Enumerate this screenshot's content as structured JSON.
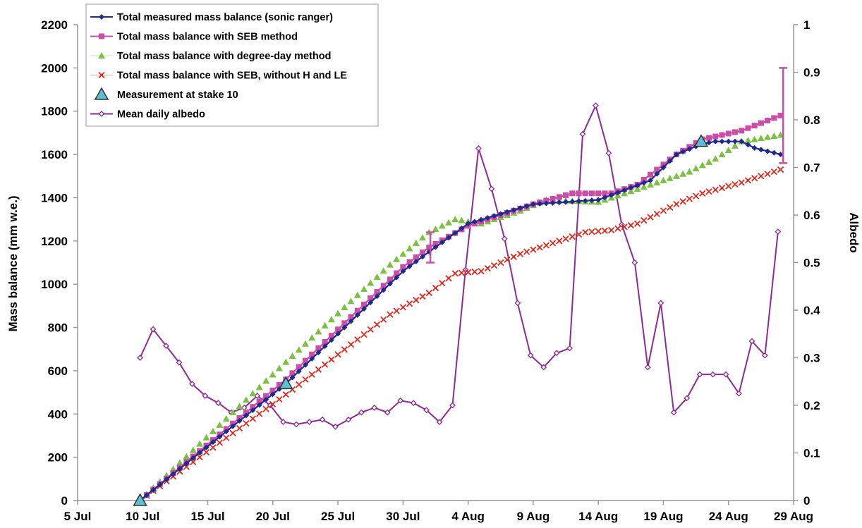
{
  "chart_data": {
    "type": "line",
    "title": "",
    "ylabel": "Mass balance (mm w.e.)",
    "y2label": "Albedo",
    "xlabel": "",
    "xlim": [
      0,
      55
    ],
    "ylim": [
      0,
      2200
    ],
    "y2lim": [
      0,
      1
    ],
    "x_ticks": [
      {
        "x": 0,
        "label": "5 Jul"
      },
      {
        "x": 5,
        "label": "10 Jul"
      },
      {
        "x": 10,
        "label": "15 Jul"
      },
      {
        "x": 15,
        "label": "20 Jul"
      },
      {
        "x": 20,
        "label": "25 Jul"
      },
      {
        "x": 25,
        "label": "30 Jul"
      },
      {
        "x": 30,
        "label": "4 Aug"
      },
      {
        "x": 35,
        "label": "9 Aug"
      },
      {
        "x": 40,
        "label": "14 Aug"
      },
      {
        "x": 45,
        "label": "19 Aug"
      },
      {
        "x": 50,
        "label": "24 Aug"
      },
      {
        "x": 55,
        "label": "29 Aug"
      }
    ],
    "y_ticks": [
      0,
      200,
      400,
      600,
      800,
      1000,
      1200,
      1400,
      1600,
      1800,
      2000,
      2200
    ],
    "y2_ticks": [
      0,
      0.1,
      0.2,
      0.3,
      0.4,
      0.5,
      0.6,
      0.7,
      0.8,
      0.9,
      1
    ],
    "grid": false,
    "legend_position": "top-left",
    "series": [
      {
        "name": "Total measured mass balance (sonic ranger)",
        "axis": "left",
        "color": "#1f2a8c",
        "marker": "diamond",
        "mode": "line",
        "points": [
          [
            4.8,
            0
          ],
          [
            16,
            540
          ],
          [
            25,
            1060
          ],
          [
            27,
            1150
          ],
          [
            30,
            1280
          ],
          [
            35,
            1370
          ],
          [
            40,
            1390
          ],
          [
            44,
            1480
          ],
          [
            46,
            1600
          ],
          [
            48,
            1650
          ],
          [
            49,
            1660
          ],
          [
            51,
            1660
          ],
          [
            52,
            1630
          ],
          [
            54,
            1600
          ]
        ]
      },
      {
        "name": "Total mass balance with SEB method",
        "axis": "left",
        "color": "#cc4da8",
        "marker": "square",
        "mode": "line",
        "points": [
          [
            4.8,
            0
          ],
          [
            16,
            560
          ],
          [
            25,
            1080
          ],
          [
            27,
            1170
          ],
          [
            30,
            1270
          ],
          [
            35,
            1370
          ],
          [
            38,
            1420
          ],
          [
            41,
            1420
          ],
          [
            43,
            1460
          ],
          [
            46,
            1600
          ],
          [
            48,
            1670
          ],
          [
            51,
            1710
          ],
          [
            54,
            1780
          ]
        ]
      },
      {
        "name": "Total mass balance with degree-day method",
        "axis": "left",
        "color": "#7ac142",
        "marker": "triangle",
        "mode": "markers",
        "points": [
          [
            4.8,
            0
          ],
          [
            16,
            640
          ],
          [
            24,
            1090
          ],
          [
            27,
            1240
          ],
          [
            29,
            1300
          ],
          [
            31,
            1280
          ],
          [
            34,
            1340
          ],
          [
            36,
            1390
          ],
          [
            40,
            1380
          ],
          [
            44,
            1460
          ],
          [
            47,
            1520
          ],
          [
            49,
            1580
          ],
          [
            51,
            1660
          ],
          [
            54,
            1690
          ]
        ]
      },
      {
        "name": "Total mass balance with SEB, without H and LE",
        "axis": "left",
        "color": "#e0291c",
        "marker": "cross",
        "mode": "markers",
        "points": [
          [
            4.8,
            0
          ],
          [
            16,
            490
          ],
          [
            24,
            860
          ],
          [
            27,
            960
          ],
          [
            29,
            1050
          ],
          [
            31,
            1060
          ],
          [
            34,
            1140
          ],
          [
            37,
            1200
          ],
          [
            39,
            1240
          ],
          [
            41,
            1250
          ],
          [
            43,
            1280
          ],
          [
            46,
            1370
          ],
          [
            48,
            1420
          ],
          [
            51,
            1470
          ],
          [
            54,
            1530
          ]
        ]
      },
      {
        "name": "Measurement at stake 10",
        "axis": "left",
        "color": "#5bc0d6",
        "marker": "triangle-large",
        "mode": "points",
        "points": [
          [
            4.8,
            0
          ],
          [
            16,
            540
          ],
          [
            47.9,
            1660
          ]
        ]
      },
      {
        "name": "Mean daily albedo",
        "axis": "right",
        "color": "#8e2a96",
        "marker": "open-diamond",
        "mode": "line",
        "points": [
          [
            4.8,
            0.3
          ],
          [
            5.8,
            0.36
          ],
          [
            6.8,
            0.325
          ],
          [
            7.8,
            0.29
          ],
          [
            8.8,
            0.245
          ],
          [
            9.8,
            0.22
          ],
          [
            10.8,
            0.205
          ],
          [
            11.8,
            0.185
          ],
          [
            12.8,
            0.195
          ],
          [
            13.8,
            0.22
          ],
          [
            14.8,
            0.2
          ],
          [
            15.8,
            0.165
          ],
          [
            16.8,
            0.16
          ],
          [
            17.8,
            0.165
          ],
          [
            18.8,
            0.17
          ],
          [
            19.8,
            0.155
          ],
          [
            20.8,
            0.17
          ],
          [
            21.8,
            0.185
          ],
          [
            22.8,
            0.195
          ],
          [
            23.8,
            0.185
          ],
          [
            24.8,
            0.21
          ],
          [
            25.8,
            0.205
          ],
          [
            26.8,
            0.19
          ],
          [
            27.8,
            0.165
          ],
          [
            28.8,
            0.2
          ],
          [
            29.8,
            0.485
          ],
          [
            30.8,
            0.74
          ],
          [
            31.8,
            0.655
          ],
          [
            32.8,
            0.55
          ],
          [
            33.8,
            0.415
          ],
          [
            34.8,
            0.305
          ],
          [
            35.8,
            0.28
          ],
          [
            36.8,
            0.31
          ],
          [
            37.8,
            0.32
          ],
          [
            38.8,
            0.77
          ],
          [
            39.8,
            0.83
          ],
          [
            40.8,
            0.73
          ],
          [
            41.8,
            0.58
          ],
          [
            42.8,
            0.5
          ],
          [
            43.8,
            0.28
          ],
          [
            44.8,
            0.415
          ],
          [
            45.8,
            0.185
          ],
          [
            46.8,
            0.215
          ],
          [
            47.8,
            0.265
          ],
          [
            48.8,
            0.265
          ],
          [
            49.8,
            0.265
          ],
          [
            50.8,
            0.225
          ],
          [
            51.8,
            0.335
          ],
          [
            52.8,
            0.305
          ],
          [
            53.8,
            0.565
          ]
        ]
      }
    ],
    "error_bars": [
      {
        "x": 27.1,
        "low": 1100,
        "high": 1240,
        "color": "#cc4da8"
      },
      {
        "x": 54.2,
        "low": 1560,
        "high": 2000,
        "color": "#cc4da8"
      }
    ]
  },
  "legend": {
    "items": [
      {
        "label": "Total measured mass balance (sonic ranger)",
        "series": 0
      },
      {
        "label": "Total mass balance with SEB method",
        "series": 1
      },
      {
        "label": "Total mass balance with degree-day method",
        "series": 2
      },
      {
        "label": "Total mass balance with SEB, without H and LE",
        "series": 3
      },
      {
        "label": "Measurement at stake 10",
        "series": 4
      },
      {
        "label": "Mean daily albedo",
        "series": 5
      }
    ]
  }
}
